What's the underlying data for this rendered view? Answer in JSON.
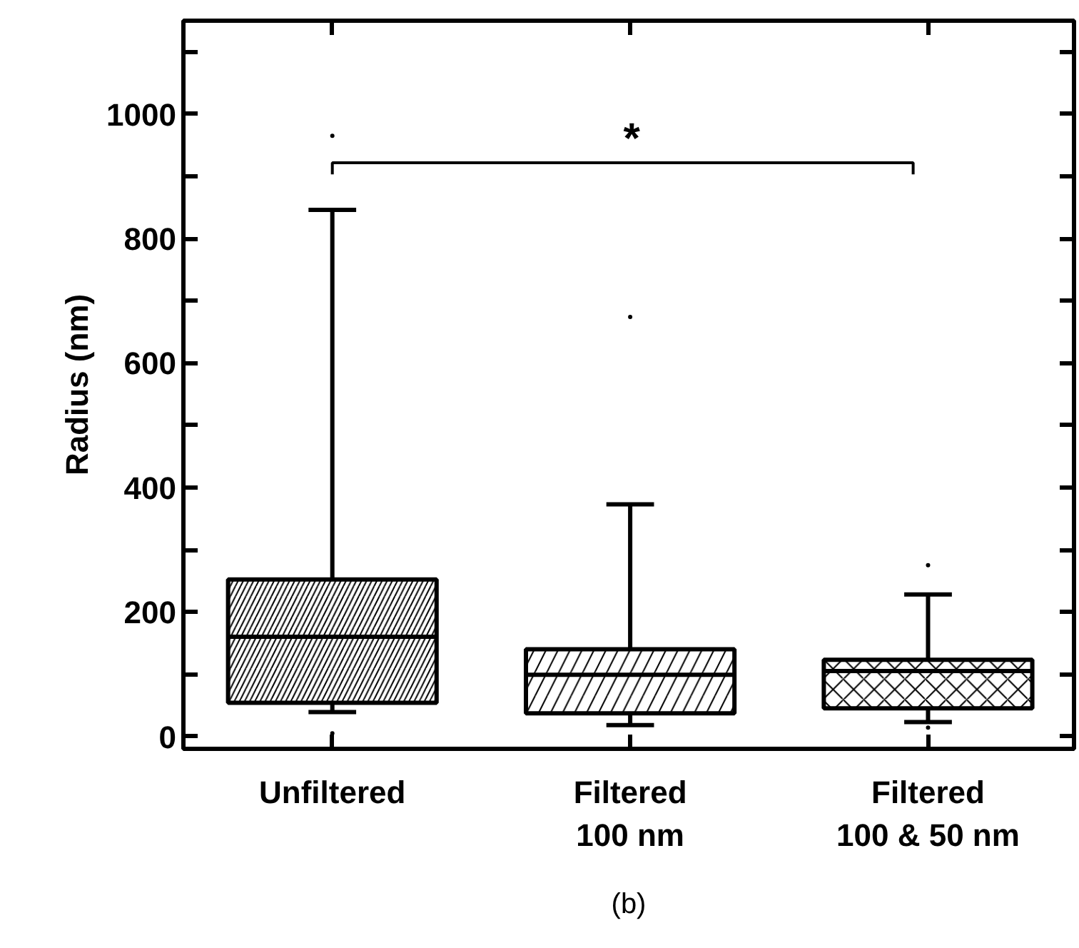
{
  "chart_data": {
    "type": "box",
    "ylabel": "Radius (nm)",
    "categories": [
      "Unfiltered",
      "Filtered\n100 nm",
      "Filtered\n100 & 50 nm"
    ],
    "boxes": [
      {
        "low": 39,
        "q1": 54,
        "median": 160,
        "q3": 252,
        "high": 846,
        "outliers": [
          965,
          5
        ]
      },
      {
        "low": 18,
        "q1": 37,
        "median": 99,
        "q3": 140,
        "high": 373,
        "outliers": [
          674
        ]
      },
      {
        "low": 23,
        "q1": 45,
        "median": 105,
        "q3": 123,
        "high": 228,
        "outliers": [
          275,
          14
        ]
      }
    ],
    "ylim": [
      -20,
      1150
    ],
    "yticks": [
      0,
      {
        "value": 100,
        "label": null
      },
      200,
      {
        "value": 300,
        "label": null
      },
      400,
      {
        "value": 500,
        "label": null
      },
      600,
      {
        "value": 700,
        "label": null
      },
      800,
      {
        "value": 900,
        "label": null
      },
      1000,
      {
        "value": 1100,
        "label": null
      }
    ],
    "grid": false,
    "annotations": [
      "*",
      "(b)"
    ]
  }
}
